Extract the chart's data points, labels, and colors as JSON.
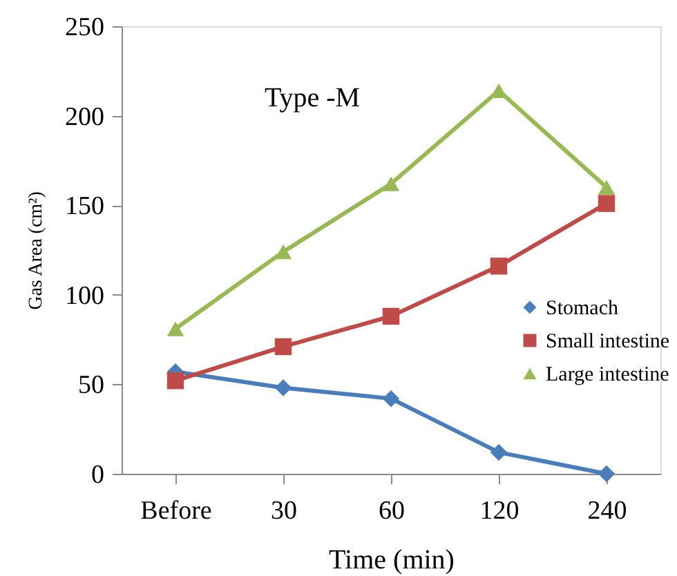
{
  "chart_data": {
    "type": "line",
    "title": "Type -M",
    "xlabel": "Time (min)",
    "ylabel": "Gas Area (cm²)",
    "categories": [
      "Before",
      "30",
      "60",
      "120",
      "240"
    ],
    "series": [
      {
        "name": "Stomach",
        "color": "#4a7ebb",
        "marker": "diamond",
        "values": [
          57,
          48,
          42,
          12,
          0
        ]
      },
      {
        "name": "Small intestine",
        "color": "#be4b48",
        "marker": "square",
        "values": [
          52,
          71,
          88,
          116,
          151
        ]
      },
      {
        "name": "Large intestine",
        "color": "#98b954",
        "marker": "triangle",
        "values": [
          81,
          124,
          162,
          214,
          160
        ]
      }
    ],
    "ylim": [
      0,
      250
    ],
    "yticks": [
      0,
      50,
      100,
      150,
      200,
      250
    ],
    "grid": false,
    "legend": "right",
    "line_style": "solid"
  }
}
